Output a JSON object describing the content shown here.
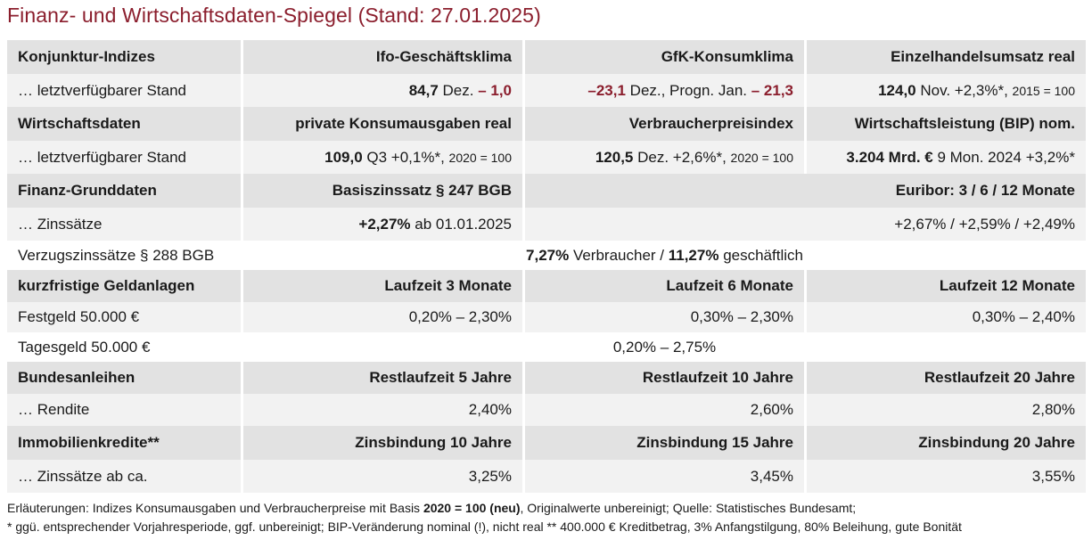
{
  "title": "Finanz- und Wirtschaftsdaten-Spiegel (Stand: 27.01.2025)",
  "konjunktur": {
    "label": "Konjunktur-Indizes",
    "ifo_header": "Ifo-Geschäftsklima",
    "gfk_header": "GfK-Konsumklima",
    "ehu_header": "Einzelhandelsumsatz real",
    "row_label": "… letztverfügbarer Stand",
    "ifo_value": "84,7",
    "ifo_period": " Dez. ",
    "ifo_change": "– 1,0",
    "gfk_value": "–23,1",
    "gfk_text": " Dez., Progn. Jan. ",
    "gfk_forecast": "– 21,3",
    "ehu_value": "124,0",
    "ehu_text": " Nov. +2,3%*, ",
    "ehu_base": "2015 = 100"
  },
  "wirtschaft": {
    "label": "Wirtschaftsdaten",
    "konsum_header": "private Konsumausgaben real",
    "vpi_header": "Verbraucherpreisindex",
    "bip_header": "Wirtschaftsleistung (BIP) nom.",
    "row_label": "… letztverfügbarer Stand",
    "konsum_value": "109,0",
    "konsum_text": " Q3 +0,1%*, ",
    "konsum_base": "2020 = 100",
    "vpi_value": "120,5",
    "vpi_text": " Dez. +2,6%*, ",
    "vpi_base": "2020 = 100",
    "bip_value": "3.204 Mrd. €",
    "bip_text": " 9 Mon. 2024 +3,2%*"
  },
  "finanz": {
    "label": "Finanz-Grunddaten",
    "basis_header": "Basiszinssatz § 247 BGB",
    "euribor_header": "Euribor: 3 / 6 / 12 Monate",
    "row_label": "… Zinssätze",
    "basis_value": "+2,27%",
    "basis_text": " ab 01.01.2025",
    "euribor_value": "+2,67% / +2,59% / +2,49%",
    "verzug_label": "Verzugszinssätze § 288 BGB",
    "verzug_v1": "7,27%",
    "verzug_t1": " Verbraucher / ",
    "verzug_v2": "11,27%",
    "verzug_t2": " geschäftlich"
  },
  "geldanlagen": {
    "label": "kurzfristige Geldanlagen",
    "h3": "Laufzeit 3 Monate",
    "h6": "Laufzeit 6 Monate",
    "h12": "Laufzeit 12 Monate",
    "festgeld_label": "Festgeld 50.000 €",
    "festgeld_3": "0,20% – 2,30%",
    "festgeld_6": "0,30% – 2,30%",
    "festgeld_12": "0,30% – 2,40%",
    "tagesgeld_label": "Tagesgeld 50.000 €",
    "tagesgeld_value": "0,20% – 2,75%"
  },
  "anleihen": {
    "label": "Bundesanleihen",
    "h5": "Restlaufzeit 5 Jahre",
    "h10": "Restlaufzeit 10 Jahre",
    "h20": "Restlaufzeit 20 Jahre",
    "row_label": "… Rendite",
    "v5": "2,40%",
    "v10": "2,60%",
    "v20": "2,80%"
  },
  "immobilien": {
    "label": "Immobilienkredite**",
    "h10": "Zinsbindung 10 Jahre",
    "h15": "Zinsbindung 15 Jahre",
    "h20": "Zinsbindung 20 Jahre",
    "row_label": "… Zinssätze ab ca.",
    "v10": "3,25%",
    "v15": "3,45%",
    "v20": "3,55%"
  },
  "footnotes": {
    "line1_a": "Erläuterungen: Indizes Konsumausgaben und Verbraucherpreise mit Basis ",
    "line1_b": "2020 = 100 (neu)",
    "line1_c": ", Originalwerte unbereinigt; Quelle: Statistisches Bundesamt;",
    "line2": "* ggü. entsprechender Vorjahresperiode, ggf. unbereinigt; BIP-Veränderung nominal (!), nicht real  ** 400.000 € Kreditbetrag, 3% Anfangstilgung, 80% Beleihung, gute Bonität"
  }
}
